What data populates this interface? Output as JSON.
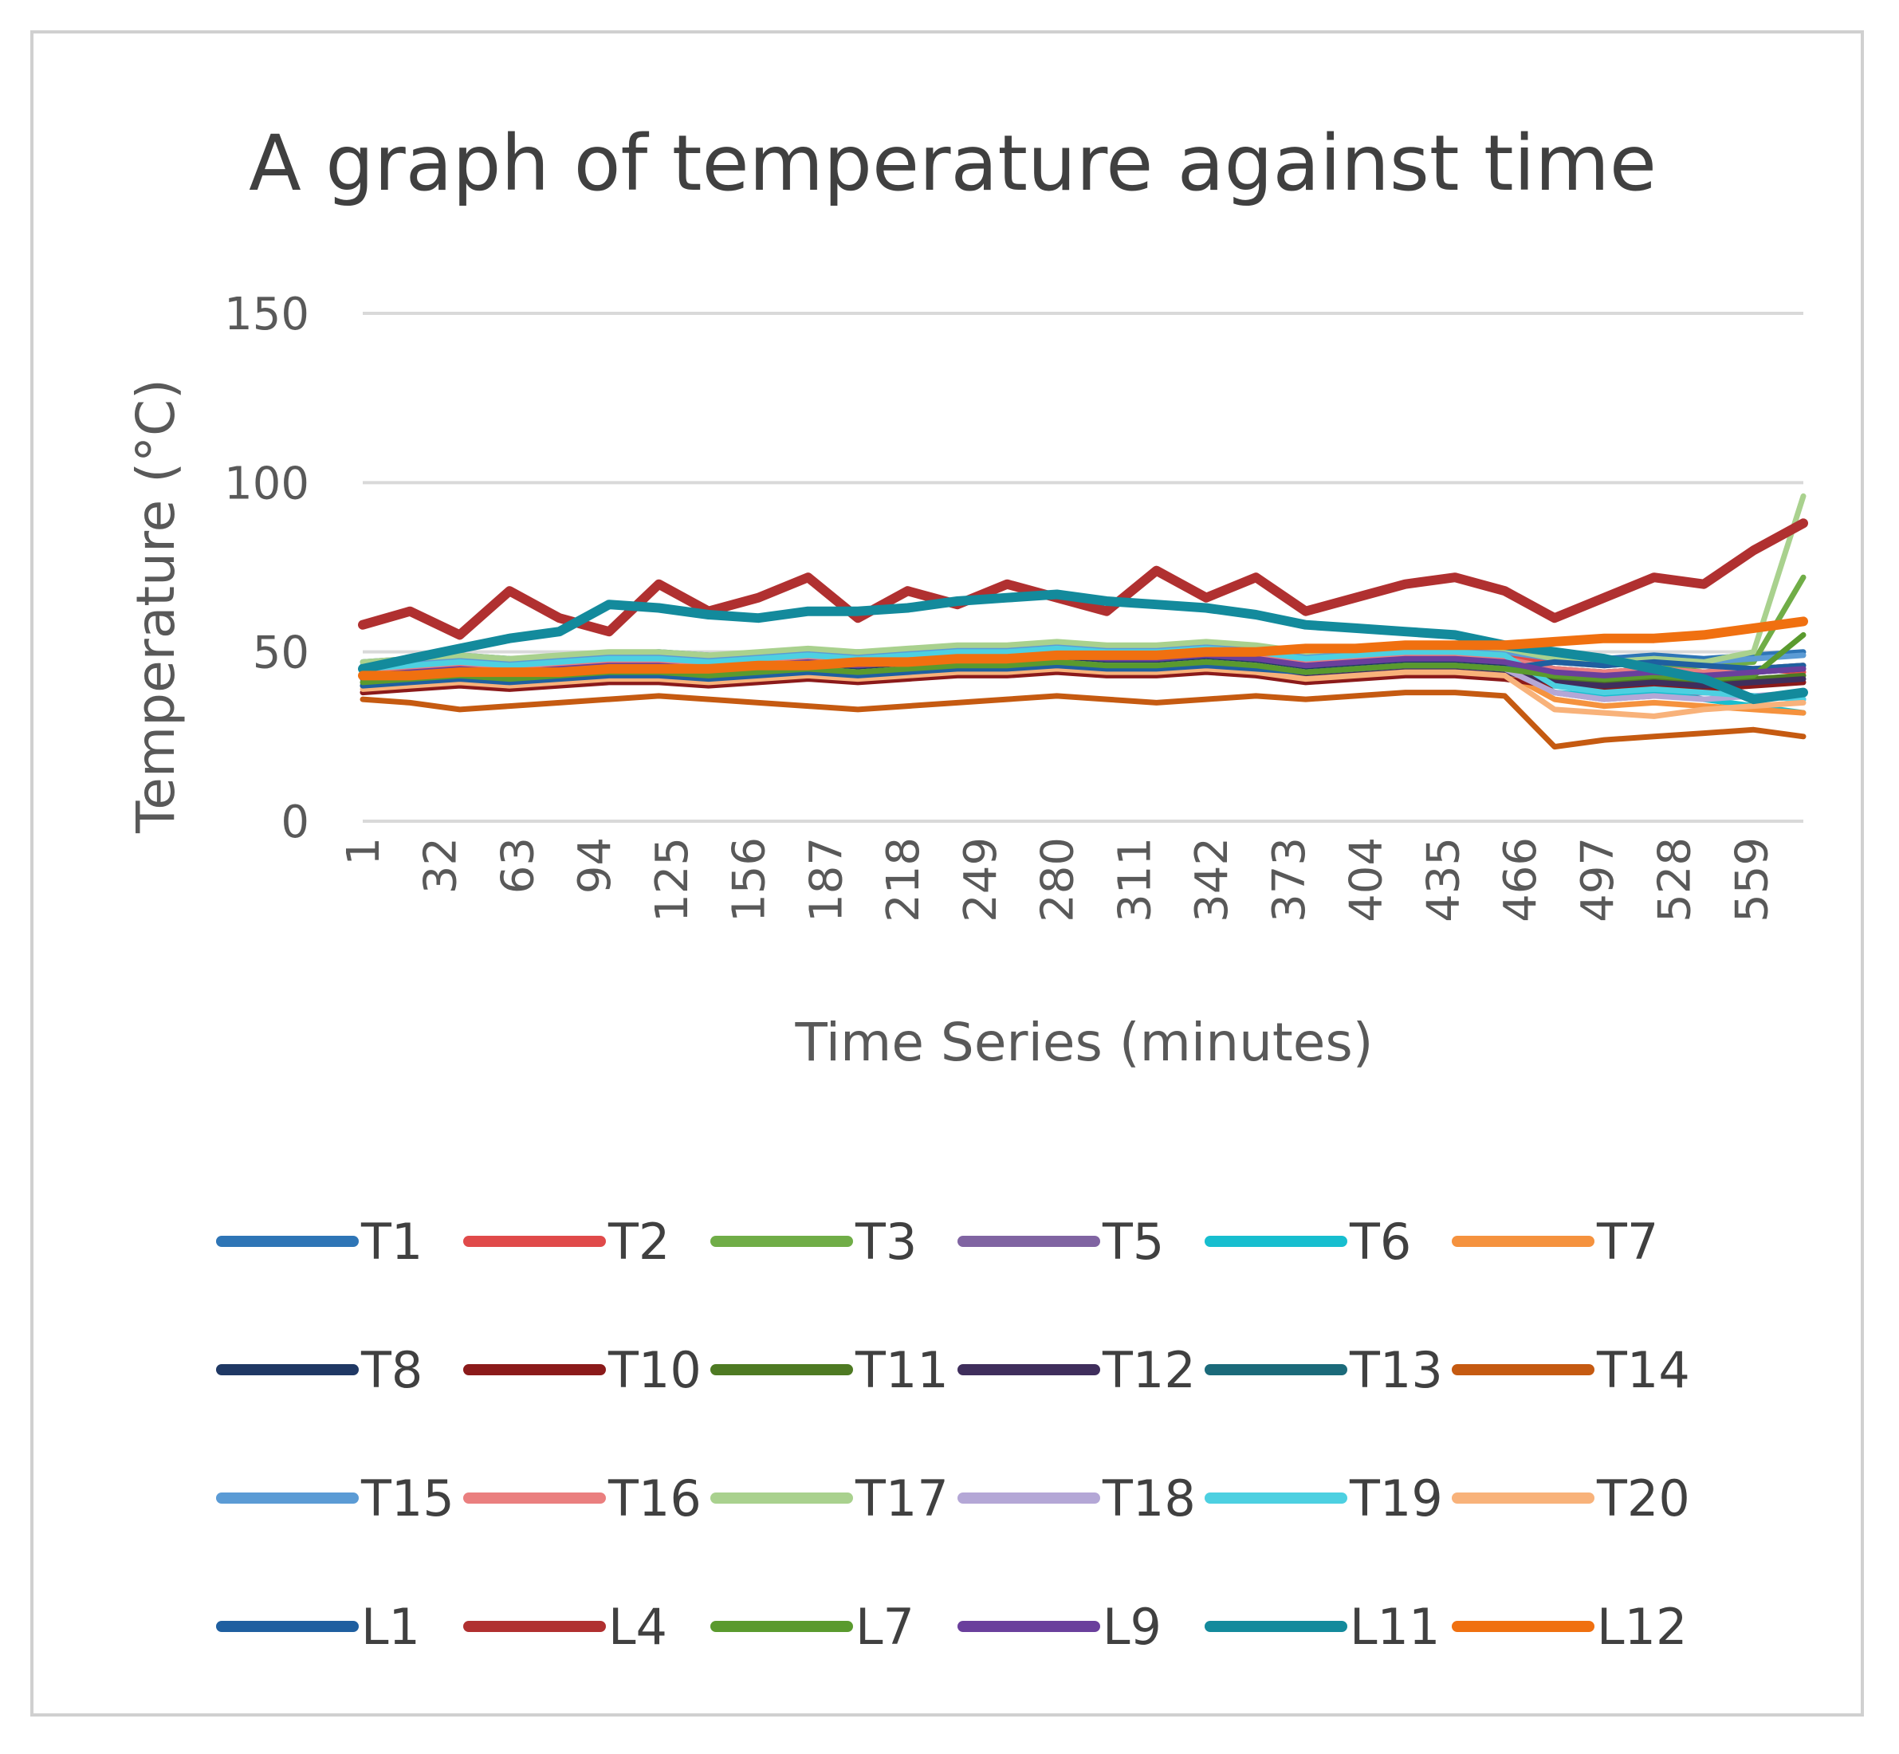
{
  "chart_data": {
    "type": "line",
    "title": "A graph of temperature against time",
    "xlabel": "Time Series (minutes)",
    "ylabel": "Temperature (°C)",
    "ylim": [
      0,
      150
    ],
    "yticks": [
      0,
      50,
      100,
      150
    ],
    "xlim": [
      1,
      580
    ],
    "xticks": [
      "1",
      "32",
      "63",
      "94",
      "125",
      "156",
      "187",
      "218",
      "249",
      "280",
      "311",
      "342",
      "373",
      "404",
      "435",
      "466",
      "497",
      "528",
      "559"
    ],
    "grid": "horizontal",
    "legend_position": "bottom",
    "x": [
      1,
      20,
      40,
      60,
      80,
      100,
      120,
      140,
      160,
      180,
      200,
      220,
      240,
      260,
      280,
      300,
      320,
      340,
      360,
      380,
      400,
      420,
      440,
      460,
      480,
      500,
      520,
      540,
      560,
      580
    ],
    "series": [
      {
        "name": "T1",
        "color": "#2e75b6",
        "values": [
          47,
          48,
          49,
          48,
          47,
          49,
          50,
          49,
          48,
          49,
          50,
          50,
          51,
          51,
          52,
          51,
          51,
          52,
          51,
          50,
          50,
          51,
          52,
          51,
          49,
          48,
          49,
          48,
          49,
          50
        ]
      },
      {
        "name": "T2",
        "color": "#e04a4a",
        "values": [
          45,
          46,
          47,
          46,
          47,
          48,
          48,
          47,
          48,
          49,
          48,
          49,
          50,
          49,
          50,
          50,
          49,
          50,
          49,
          48,
          49,
          50,
          50,
          49,
          47,
          46,
          47,
          46,
          45,
          44
        ]
      },
      {
        "name": "T3",
        "color": "#70ad47",
        "values": [
          44,
          45,
          46,
          45,
          46,
          47,
          47,
          46,
          47,
          48,
          47,
          48,
          49,
          49,
          50,
          49,
          49,
          50,
          49,
          47,
          48,
          49,
          49,
          48,
          45,
          44,
          45,
          46,
          47,
          72
        ]
      },
      {
        "name": "T5",
        "color": "#8064a2",
        "values": [
          42,
          43,
          44,
          43,
          44,
          45,
          45,
          44,
          45,
          46,
          45,
          46,
          47,
          47,
          48,
          47,
          47,
          48,
          47,
          44,
          45,
          46,
          46,
          45,
          38,
          36,
          37,
          38,
          37,
          36
        ]
      },
      {
        "name": "T6",
        "color": "#17becf",
        "values": [
          43,
          44,
          45,
          44,
          45,
          46,
          46,
          45,
          46,
          46,
          45,
          46,
          47,
          47,
          48,
          47,
          47,
          48,
          47,
          45,
          46,
          47,
          47,
          46,
          38,
          37,
          38,
          36,
          34,
          32
        ]
      },
      {
        "name": "T7",
        "color": "#f5923e",
        "values": [
          40,
          41,
          42,
          41,
          42,
          43,
          43,
          42,
          43,
          44,
          43,
          44,
          45,
          45,
          46,
          45,
          45,
          46,
          45,
          43,
          44,
          45,
          45,
          44,
          36,
          34,
          35,
          34,
          33,
          32
        ]
      },
      {
        "name": "T8",
        "color": "#1f3864",
        "values": [
          42,
          43,
          44,
          43,
          44,
          45,
          45,
          44,
          45,
          46,
          45,
          46,
          47,
          47,
          48,
          47,
          47,
          48,
          47,
          45,
          46,
          47,
          47,
          46,
          44,
          43,
          44,
          43,
          44,
          45
        ]
      },
      {
        "name": "T10",
        "color": "#8b1a1a",
        "values": [
          38,
          39,
          40,
          39,
          40,
          41,
          41,
          40,
          41,
          42,
          41,
          42,
          43,
          43,
          44,
          43,
          43,
          44,
          43,
          41,
          42,
          43,
          43,
          42,
          40,
          39,
          40,
          39,
          40,
          41
        ]
      },
      {
        "name": "T11",
        "color": "#4e7a23",
        "values": [
          41,
          42,
          43,
          42,
          43,
          44,
          44,
          43,
          44,
          45,
          44,
          45,
          46,
          46,
          47,
          46,
          46,
          47,
          46,
          44,
          45,
          46,
          46,
          45,
          42,
          41,
          42,
          41,
          42,
          43
        ]
      },
      {
        "name": "T12",
        "color": "#3f2e5c",
        "values": [
          40,
          41,
          42,
          41,
          42,
          43,
          43,
          42,
          43,
          44,
          43,
          44,
          45,
          45,
          46,
          45,
          45,
          46,
          45,
          43,
          44,
          45,
          45,
          44,
          41,
          40,
          41,
          40,
          41,
          42
        ]
      },
      {
        "name": "T13",
        "color": "#1b6a7a",
        "values": [
          43,
          44,
          45,
          44,
          45,
          46,
          46,
          45,
          46,
          47,
          46,
          47,
          48,
          48,
          49,
          48,
          48,
          49,
          48,
          46,
          47,
          48,
          48,
          47,
          45,
          44,
          45,
          44,
          45,
          46
        ]
      },
      {
        "name": "T14",
        "color": "#c55a11",
        "values": [
          36,
          35,
          33,
          34,
          35,
          36,
          37,
          36,
          35,
          34,
          33,
          34,
          35,
          36,
          37,
          36,
          35,
          36,
          37,
          36,
          37,
          38,
          38,
          37,
          22,
          24,
          25,
          26,
          27,
          25
        ]
      },
      {
        "name": "T15",
        "color": "#5b9bd5",
        "values": [
          46,
          47,
          48,
          47,
          48,
          49,
          49,
          48,
          49,
          50,
          49,
          50,
          51,
          51,
          52,
          51,
          51,
          52,
          51,
          49,
          50,
          51,
          51,
          50,
          48,
          47,
          48,
          47,
          48,
          49
        ]
      },
      {
        "name": "T16",
        "color": "#ea7f7f",
        "values": [
          44,
          45,
          46,
          45,
          46,
          47,
          47,
          46,
          47,
          48,
          47,
          48,
          49,
          49,
          50,
          49,
          49,
          50,
          49,
          47,
          48,
          49,
          49,
          48,
          45,
          44,
          45,
          44,
          45,
          46
        ]
      },
      {
        "name": "T17",
        "color": "#a9d18e",
        "values": [
          47,
          48,
          49,
          48,
          49,
          50,
          50,
          49,
          50,
          51,
          50,
          51,
          52,
          52,
          53,
          52,
          52,
          53,
          52,
          50,
          51,
          52,
          52,
          51,
          48,
          47,
          48,
          47,
          50,
          96
        ]
      },
      {
        "name": "T18",
        "color": "#b4a7d6",
        "values": [
          41,
          42,
          43,
          42,
          43,
          44,
          44,
          43,
          44,
          45,
          44,
          45,
          46,
          46,
          47,
          46,
          46,
          47,
          46,
          44,
          45,
          46,
          46,
          45,
          38,
          36,
          37,
          36,
          37,
          38
        ]
      },
      {
        "name": "T19",
        "color": "#4dd0e1",
        "values": [
          45,
          46,
          47,
          46,
          47,
          48,
          48,
          47,
          48,
          49,
          48,
          49,
          50,
          50,
          51,
          50,
          50,
          51,
          50,
          48,
          49,
          50,
          50,
          49,
          40,
          38,
          39,
          38,
          37,
          36
        ]
      },
      {
        "name": "T20",
        "color": "#f8b27a",
        "values": [
          39,
          40,
          41,
          40,
          41,
          42,
          42,
          41,
          42,
          43,
          42,
          43,
          44,
          44,
          45,
          44,
          44,
          45,
          44,
          42,
          43,
          44,
          44,
          43,
          33,
          32,
          31,
          33,
          34,
          35
        ]
      },
      {
        "name": "L1",
        "color": "#1f5fa0",
        "values": [
          40,
          41,
          42,
          41,
          42,
          43,
          43,
          42,
          43,
          44,
          43,
          44,
          45,
          45,
          46,
          45,
          45,
          46,
          45,
          44,
          45,
          46,
          46,
          45,
          47,
          46,
          47,
          46,
          45,
          46
        ]
      },
      {
        "name": "L4",
        "color": "#b03030",
        "values": [
          58,
          62,
          55,
          68,
          60,
          56,
          70,
          62,
          66,
          72,
          60,
          68,
          64,
          70,
          66,
          62,
          74,
          66,
          72,
          62,
          66,
          70,
          72,
          68,
          60,
          66,
          72,
          70,
          80,
          88
        ]
      },
      {
        "name": "L7",
        "color": "#5a9a2e",
        "values": [
          41,
          42,
          43,
          42,
          43,
          44,
          44,
          43,
          44,
          45,
          44,
          45,
          46,
          46,
          47,
          46,
          46,
          47,
          46,
          44,
          45,
          46,
          46,
          45,
          43,
          42,
          43,
          42,
          43,
          55
        ]
      },
      {
        "name": "L9",
        "color": "#6a3f9c",
        "values": [
          43,
          44,
          45,
          44,
          45,
          46,
          46,
          45,
          46,
          47,
          46,
          47,
          48,
          48,
          49,
          48,
          48,
          49,
          48,
          46,
          47,
          48,
          48,
          47,
          44,
          43,
          44,
          43,
          44,
          45
        ]
      },
      {
        "name": "L11",
        "color": "#138a9c",
        "values": [
          45,
          48,
          51,
          54,
          56,
          64,
          63,
          61,
          60,
          62,
          62,
          63,
          65,
          66,
          67,
          65,
          64,
          63,
          61,
          58,
          57,
          56,
          55,
          52,
          50,
          48,
          45,
          42,
          36,
          38
        ]
      },
      {
        "name": "L12",
        "color": "#f07010",
        "values": [
          43,
          43,
          44,
          44,
          44,
          45,
          45,
          45,
          46,
          46,
          47,
          47,
          48,
          48,
          49,
          49,
          49,
          50,
          50,
          51,
          51,
          52,
          52,
          52,
          53,
          54,
          54,
          55,
          57,
          59
        ]
      }
    ]
  }
}
